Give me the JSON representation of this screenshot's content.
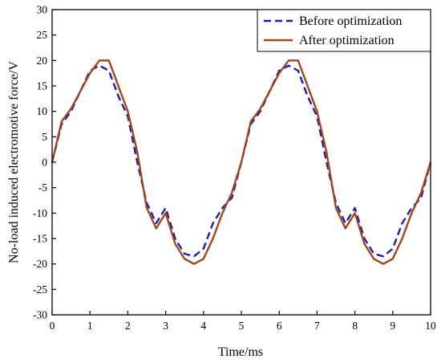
{
  "chart_data": {
    "type": "line",
    "xlabel": "Time/ms",
    "ylabel": "No-load induced electromotive force/V",
    "xlim": [
      0,
      10
    ],
    "ylim": [
      -30,
      30
    ],
    "xticks": [
      0,
      1,
      2,
      3,
      4,
      5,
      6,
      7,
      8,
      9,
      10
    ],
    "yticks": [
      -30,
      -25,
      -20,
      -15,
      -10,
      -5,
      0,
      5,
      10,
      15,
      20,
      25,
      30
    ],
    "grid": false,
    "legend_position": "top-right",
    "x": [
      0,
      0.25,
      0.5,
      0.75,
      1.0,
      1.25,
      1.5,
      1.75,
      2.0,
      2.25,
      2.5,
      2.75,
      3.0,
      3.25,
      3.5,
      3.75,
      4.0,
      4.25,
      4.5,
      4.75,
      5.0,
      5.25,
      5.5,
      5.75,
      6.0,
      6.25,
      6.5,
      6.75,
      7.0,
      7.25,
      7.5,
      7.75,
      8.0,
      8.25,
      8.5,
      8.75,
      9.0,
      9.25,
      9.5,
      9.75,
      10.0
    ],
    "series": [
      {
        "name": "Before optimization",
        "color": "#1f1fa6",
        "style": "dashed",
        "values": [
          0,
          7.5,
          10,
          14,
          18,
          19,
          18,
          13,
          9,
          0,
          -8,
          -12,
          -9,
          -15,
          -18,
          -18.5,
          -17,
          -12,
          -9,
          -7,
          0,
          7.5,
          10,
          14,
          18,
          19,
          18,
          13,
          9,
          0,
          -8,
          -12,
          -9,
          -15,
          -18,
          -18.5,
          -17,
          -12,
          -9,
          -7,
          0
        ]
      },
      {
        "name": "After optimization",
        "color": "#a0461e",
        "style": "solid",
        "values": [
          0,
          8,
          10.5,
          14,
          17.5,
          20,
          20,
          15,
          10,
          2,
          -9,
          -13,
          -10,
          -16,
          -19,
          -20,
          -19,
          -15,
          -10,
          -6,
          0,
          8,
          10.5,
          14,
          17.5,
          20,
          20,
          15,
          10,
          2,
          -9,
          -13,
          -10,
          -16,
          -19,
          -20,
          -19,
          -15,
          -10,
          -6,
          0
        ]
      }
    ]
  }
}
